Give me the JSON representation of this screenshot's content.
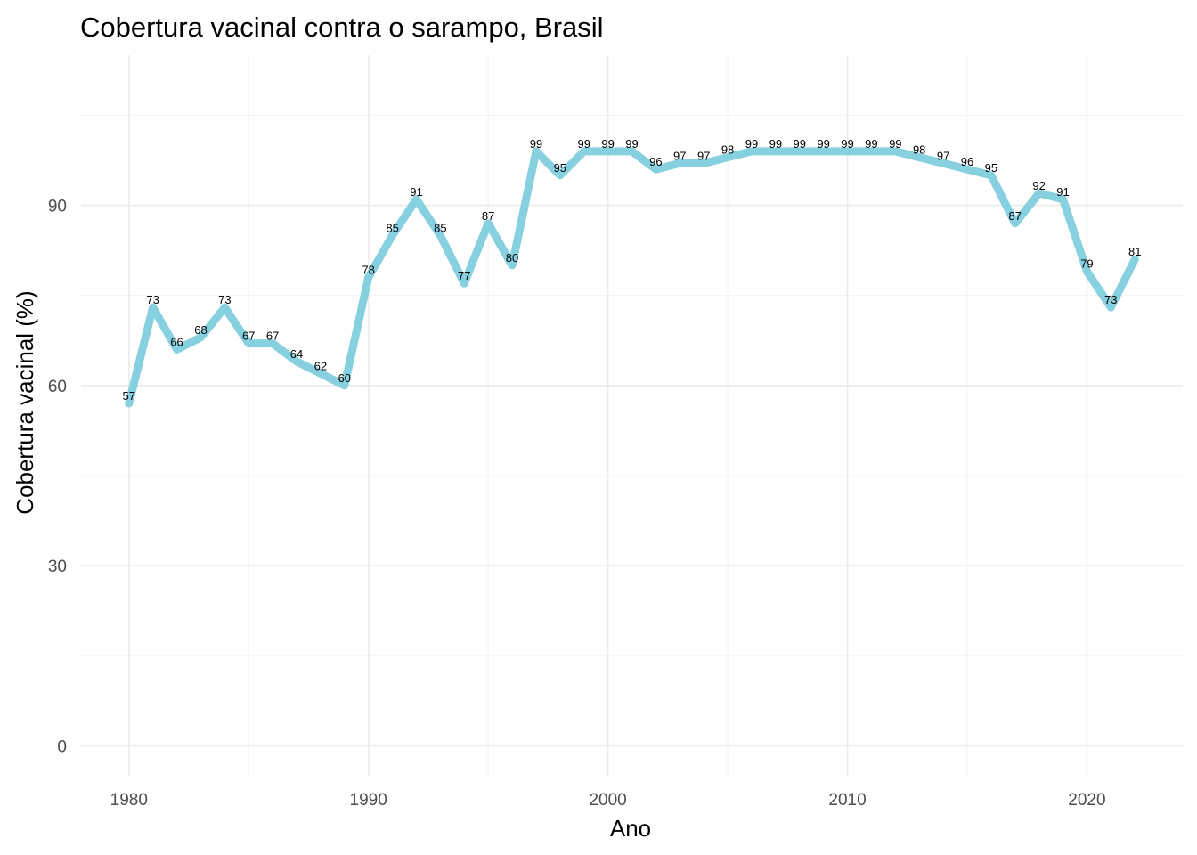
{
  "chart_data": {
    "type": "line",
    "title": "Cobertura vacinal contra o sarampo, Brasil",
    "xlabel": "Ano",
    "ylabel": "Cobertura vacinal (%)",
    "xlim": [
      1978,
      2024
    ],
    "ylim": [
      -5,
      115
    ],
    "x_ticks": [
      1980,
      1990,
      2000,
      2010,
      2020
    ],
    "y_ticks": [
      0,
      30,
      60,
      90
    ],
    "grid": true,
    "legend": "none",
    "line_color": "#87d0e0",
    "x": [
      1980,
      1981,
      1982,
      1983,
      1984,
      1985,
      1986,
      1987,
      1988,
      1989,
      1990,
      1991,
      1992,
      1993,
      1994,
      1995,
      1996,
      1997,
      1998,
      1999,
      2000,
      2001,
      2002,
      2003,
      2004,
      2005,
      2006,
      2007,
      2008,
      2009,
      2010,
      2011,
      2012,
      2013,
      2014,
      2015,
      2016,
      2017,
      2018,
      2019,
      2020,
      2021,
      2022
    ],
    "values": [
      57,
      73,
      66,
      68,
      73,
      67,
      67,
      64,
      62,
      60,
      78,
      85,
      91,
      85,
      77,
      87,
      80,
      99,
      95,
      99,
      99,
      99,
      96,
      97,
      97,
      98,
      99,
      99,
      99,
      99,
      99,
      99,
      99,
      98,
      97,
      96,
      95,
      87,
      92,
      91,
      79,
      73,
      81
    ]
  }
}
